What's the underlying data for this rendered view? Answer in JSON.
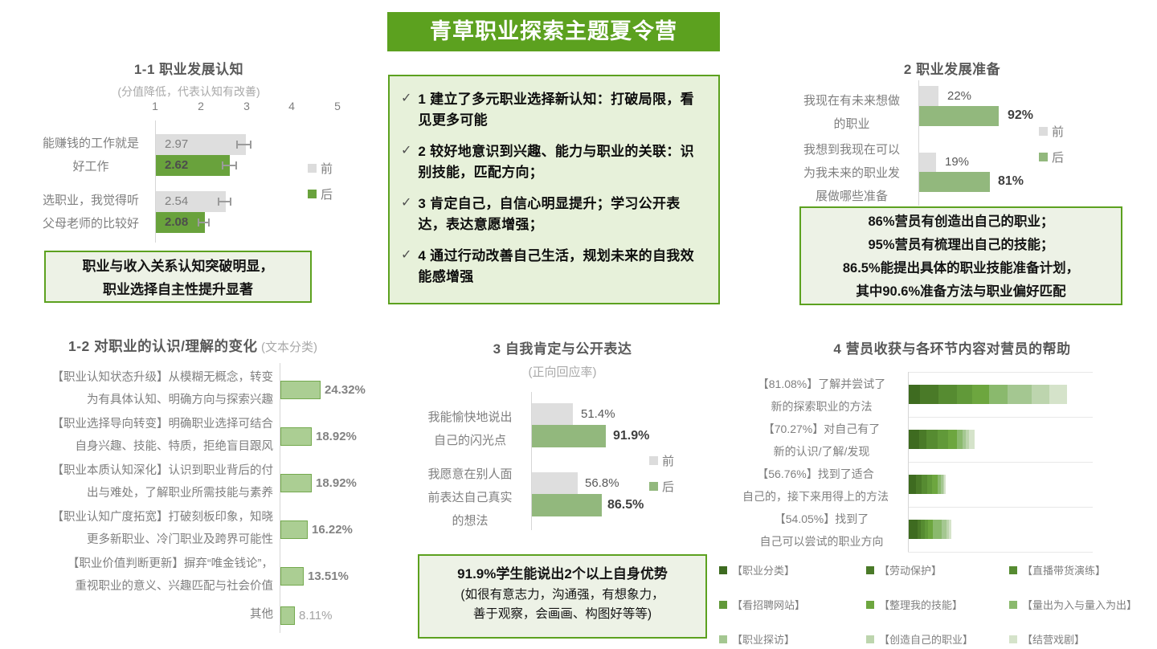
{
  "banner": {
    "title": "青草职业探索主题夏令营"
  },
  "highlights": {
    "check": "✓",
    "items": [
      "1 建立了多元职业选择新认知：打破局限，看见更多可能",
      "2 较好地意识到兴趣、能力与职业的关联：识别技能，匹配方向；",
      "3 肯定自己，自信心明显提升；学习公开表达，表达意愿增强；",
      "4 通过行动改善自己生活，规划未来的自我效能感增强"
    ]
  },
  "colors": {
    "brand_green": "#5ca11f",
    "bar_gray": "#dedede",
    "bar_green_dark": "#69a23c",
    "bar_green_sage": "#92b87d",
    "bar_light_fill": "#abce93"
  },
  "chart_data": [
    {
      "id": "1-1",
      "type": "bar",
      "orientation": "horizontal",
      "title": "1-1 职业发展认知",
      "subtitle": "(分值降低，代表认知有改善)",
      "xlim": [
        1,
        5
      ],
      "xticks": [
        "1",
        "2",
        "3",
        "4",
        "5"
      ],
      "categories": [
        [
          "能赚钱的工作就是",
          "好工作"
        ],
        [
          "选职业，我觉得听",
          "父母老师的比较好"
        ]
      ],
      "series": [
        {
          "name": "前",
          "values": [
            2.97,
            2.54
          ],
          "labels": [
            "2.97",
            "2.54"
          ]
        },
        {
          "name": "后",
          "values": [
            2.62,
            2.08
          ],
          "labels": [
            "2.62",
            "2.08"
          ]
        }
      ],
      "error_bars": true,
      "legend": [
        "前",
        "后"
      ],
      "note": [
        "职业与收入关系认知突破明显，",
        "职业选择自主性提升显著"
      ]
    },
    {
      "id": "1-2",
      "type": "bar",
      "orientation": "horizontal",
      "title": "1-2 对职业的认识/理解的变化",
      "subtitle": "(文本分类)",
      "items": [
        {
          "label": [
            "【职业认知状态升级】从模糊无概念，转变",
            "为有具体认知、明确方向与探索兴趣"
          ],
          "value": 24.32,
          "display": "24.32%"
        },
        {
          "label": [
            "【职业选择导向转变】明确职业选择可结合",
            "自身兴趣、技能、特质，拒绝盲目跟风"
          ],
          "value": 18.92,
          "display": "18.92%"
        },
        {
          "label": [
            "【职业本质认知深化】认识到职业背后的付",
            "出与难处，了解职业所需技能与素养"
          ],
          "value": 18.92,
          "display": "18.92%"
        },
        {
          "label": [
            "【职业认知广度拓宽】打破刻板印象，知晓",
            "更多新职业、冷门职业及跨界可能性"
          ],
          "value": 16.22,
          "display": "16.22%"
        },
        {
          "label": [
            "【职业价值判断更新】摒弃“唯金钱论”，",
            "重视职业的意义、兴趣匹配与社会价值"
          ],
          "value": 13.51,
          "display": "13.51%"
        },
        {
          "label": [
            "其他"
          ],
          "value": 8.11,
          "display": "8.11%"
        }
      ]
    },
    {
      "id": "2",
      "type": "bar",
      "orientation": "horizontal",
      "title": "2 职业发展准备",
      "categories": [
        [
          "我现在有未来想做",
          "的职业"
        ],
        [
          "我想到我现在可以",
          "为我未来的职业发",
          "展做哪些准备"
        ]
      ],
      "series": [
        {
          "name": "前",
          "values": [
            22,
            19
          ],
          "labels": [
            "22%",
            "19%"
          ]
        },
        {
          "name": "后",
          "values": [
            92,
            81
          ],
          "labels": [
            "92%",
            "81%"
          ]
        }
      ],
      "legend": [
        "前",
        "后"
      ],
      "note": [
        "86%营员有创造出自己的职业；",
        "95%营员有梳理出自己的技能；",
        "86.5%能提出具体的职业技能准备计划，",
        "其中90.6%准备方法与职业偏好匹配"
      ]
    },
    {
      "id": "3",
      "type": "bar",
      "orientation": "horizontal",
      "title": "3 自我肯定与公开表达",
      "subtitle": "(正向回应率)",
      "categories": [
        [
          "我能愉快地说出",
          "自己的闪光点"
        ],
        [
          "我愿意在别人面",
          "前表达自己真实",
          "的想法"
        ]
      ],
      "series": [
        {
          "name": "前",
          "values": [
            51.4,
            56.8
          ],
          "labels": [
            "51.4%",
            "56.8%"
          ]
        },
        {
          "name": "后",
          "values": [
            91.9,
            86.5
          ],
          "labels": [
            "91.9%",
            "86.5%"
          ]
        }
      ],
      "legend": [
        "前",
        "后"
      ],
      "note_bold": "91.9%学生能说出2个以上自身优势",
      "note_lines": [
        "(如很有意志力，沟通强，有想象力，",
        "善于观察，会画画、构图好等等)"
      ]
    },
    {
      "id": "4",
      "type": "stacked-bar",
      "orientation": "horizontal",
      "title": "4 营员收获与各环节内容对营员的帮助",
      "segment_unit": "relative width (estimated from pixels)",
      "rows": [
        {
          "label": [
            "【81.08%】了解并尝试了",
            "新的探索职业的方法"
          ],
          "total_pct": 81.08,
          "segments": [
            14,
            23,
            23,
            19,
            21,
            23,
            30,
            22,
            22
          ]
        },
        {
          "label": [
            "【70.27%】对自己有了",
            "新的认识/了解/发现"
          ],
          "total_pct": 70.27,
          "segments": [
            13,
            9,
            14,
            13,
            11,
            7,
            4,
            4,
            7
          ]
        },
        {
          "label": [
            "【56.76%】找到了适合",
            "自己的，接下来用得上的方法"
          ],
          "total_pct": 56.76,
          "segments": [
            9,
            7,
            7,
            6,
            7,
            4,
            3,
            1,
            2
          ]
        },
        {
          "label": [
            "【54.05%】找到了",
            "自己可以尝试的职业方向"
          ],
          "total_pct": 54.05,
          "segments": [
            11,
            4,
            5,
            4,
            6,
            11,
            6,
            3,
            3
          ]
        }
      ],
      "legend": [
        {
          "label": "【职业分类】",
          "color": "#3e6b20"
        },
        {
          "label": "【劳动保护】",
          "color": "#4a7a28"
        },
        {
          "label": "【直播带货演练】",
          "color": "#568b31"
        },
        {
          "label": "【看招聘网站】",
          "color": "#619939"
        },
        {
          "label": "【整理我的技能】",
          "color": "#6da63f"
        },
        {
          "label": "【量出为入与量入为出】",
          "color": "#8ab96d"
        },
        {
          "label": "【职业探访】",
          "color": "#a4c791"
        },
        {
          "label": "【创造自己的职业】",
          "color": "#bdd5ae"
        },
        {
          "label": "【结营戏剧】",
          "color": "#d5e3ca"
        }
      ]
    }
  ]
}
